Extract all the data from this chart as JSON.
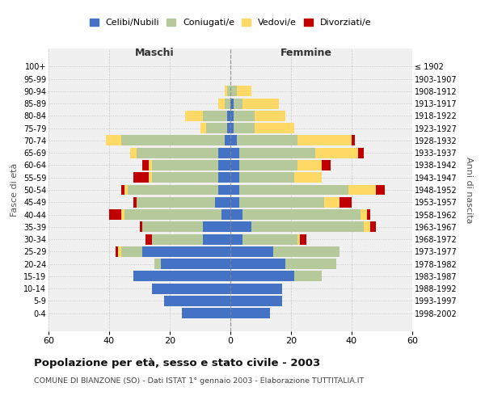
{
  "age_groups": [
    "0-4",
    "5-9",
    "10-14",
    "15-19",
    "20-24",
    "25-29",
    "30-34",
    "35-39",
    "40-44",
    "45-49",
    "50-54",
    "55-59",
    "60-64",
    "65-69",
    "70-74",
    "75-79",
    "80-84",
    "85-89",
    "90-94",
    "95-99",
    "100+"
  ],
  "birth_years": [
    "1998-2002",
    "1993-1997",
    "1988-1992",
    "1983-1987",
    "1978-1982",
    "1973-1977",
    "1968-1972",
    "1963-1967",
    "1958-1962",
    "1953-1957",
    "1948-1952",
    "1943-1947",
    "1938-1942",
    "1933-1937",
    "1928-1932",
    "1923-1927",
    "1918-1922",
    "1913-1917",
    "1908-1912",
    "1903-1907",
    "≤ 1902"
  ],
  "males": {
    "celibi": [
      16,
      22,
      26,
      32,
      23,
      29,
      9,
      9,
      3,
      5,
      4,
      4,
      4,
      4,
      2,
      1,
      1,
      0,
      0,
      0,
      0
    ],
    "coniugati": [
      0,
      0,
      0,
      0,
      2,
      7,
      17,
      20,
      32,
      26,
      30,
      22,
      22,
      27,
      34,
      7,
      8,
      2,
      1,
      0,
      0
    ],
    "vedovi": [
      0,
      0,
      0,
      0,
      0,
      1,
      0,
      0,
      1,
      0,
      1,
      1,
      1,
      2,
      5,
      2,
      6,
      2,
      1,
      0,
      0
    ],
    "divorziati": [
      0,
      0,
      0,
      0,
      0,
      1,
      2,
      1,
      4,
      1,
      1,
      5,
      2,
      0,
      0,
      0,
      0,
      0,
      0,
      0,
      0
    ]
  },
  "females": {
    "nubili": [
      13,
      17,
      17,
      21,
      18,
      14,
      4,
      7,
      4,
      3,
      3,
      3,
      3,
      3,
      2,
      1,
      1,
      1,
      0,
      0,
      0
    ],
    "coniugate": [
      0,
      0,
      0,
      9,
      17,
      22,
      18,
      37,
      39,
      28,
      36,
      18,
      19,
      25,
      20,
      7,
      7,
      3,
      2,
      0,
      0
    ],
    "vedove": [
      0,
      0,
      0,
      0,
      0,
      0,
      1,
      2,
      2,
      5,
      9,
      9,
      8,
      14,
      18,
      13,
      10,
      12,
      5,
      0,
      0
    ],
    "divorziate": [
      0,
      0,
      0,
      0,
      0,
      0,
      2,
      2,
      1,
      4,
      3,
      0,
      3,
      2,
      1,
      0,
      0,
      0,
      0,
      0,
      0
    ]
  },
  "colors": {
    "celibi": "#4472c4",
    "coniugati": "#b5c99a",
    "vedovi": "#ffd966",
    "divorziati": "#c00000"
  },
  "xlim": 60,
  "title": "Popolazione per età, sesso e stato civile - 2003",
  "subtitle": "COMUNE DI BIANZONE (SO) - Dati ISTAT 1° gennaio 2003 - Elaborazione TUTTITALIA.IT",
  "ylabel_left": "Fasce di età",
  "ylabel_right": "Anni di nascita",
  "xlabel_left": "Maschi",
  "xlabel_right": "Femmine",
  "legend_labels": [
    "Celibi/Nubili",
    "Coniugati/e",
    "Vedovi/e",
    "Divorziati/e"
  ],
  "bg_color": "#ffffff",
  "grid_color": "#bbbbbb"
}
